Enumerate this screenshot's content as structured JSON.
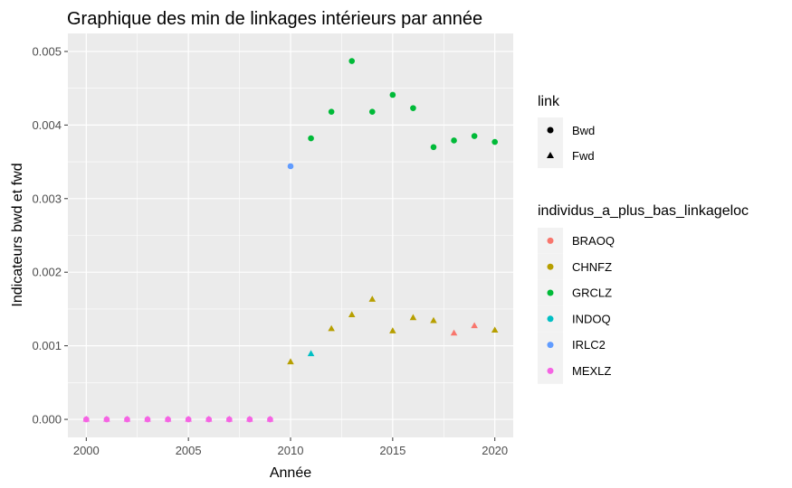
{
  "chart_data": {
    "type": "scatter",
    "title": "Graphique des min de linkages intérieurs par année",
    "xlabel": "Année",
    "ylabel": "Indicateurs bwd et fwd",
    "xlim": [
      1999.1,
      2020.9
    ],
    "ylim": [
      -0.000245,
      0.005245
    ],
    "x_ticks": [
      2000,
      2005,
      2010,
      2015,
      2020
    ],
    "x_tick_labels": [
      "2000",
      "2005",
      "2010",
      "2015",
      "2020"
    ],
    "y_ticks": [
      0,
      0.001,
      0.002,
      0.003,
      0.004,
      0.005
    ],
    "y_tick_labels": [
      "0.000",
      "0.001",
      "0.002",
      "0.003",
      "0.004",
      "0.005"
    ],
    "grid": true,
    "legend_position": "right",
    "shape_legend": {
      "title": "link",
      "entries": [
        {
          "label": "Bwd",
          "shape": "circle"
        },
        {
          "label": "Fwd",
          "shape": "triangle"
        }
      ]
    },
    "color_legend": {
      "title": "individus_a_plus_bas_linkageloc",
      "entries": [
        {
          "label": "BRAOQ",
          "color": "#F8766D"
        },
        {
          "label": "CHNFZ",
          "color": "#B79F00"
        },
        {
          "label": "GRCLZ",
          "color": "#00BA38"
        },
        {
          "label": "INDOQ",
          "color": "#00BFC4"
        },
        {
          "label": "IRLC2",
          "color": "#619CFF"
        },
        {
          "label": "MEXLZ",
          "color": "#F564E3"
        }
      ]
    },
    "series": [
      {
        "link": "Bwd",
        "points": [
          {
            "x": 2000,
            "y": 0,
            "group": "MEXLZ"
          },
          {
            "x": 2001,
            "y": 0,
            "group": "MEXLZ"
          },
          {
            "x": 2002,
            "y": 0,
            "group": "MEXLZ"
          },
          {
            "x": 2003,
            "y": 0,
            "group": "MEXLZ"
          },
          {
            "x": 2004,
            "y": 0,
            "group": "MEXLZ"
          },
          {
            "x": 2005,
            "y": 0,
            "group": "MEXLZ"
          },
          {
            "x": 2006,
            "y": 0,
            "group": "MEXLZ"
          },
          {
            "x": 2007,
            "y": 0,
            "group": "MEXLZ"
          },
          {
            "x": 2008,
            "y": 0,
            "group": "MEXLZ"
          },
          {
            "x": 2009,
            "y": 0,
            "group": "MEXLZ"
          },
          {
            "x": 2010,
            "y": 0.00344,
            "group": "IRLC2"
          },
          {
            "x": 2011,
            "y": 0.00382,
            "group": "GRCLZ"
          },
          {
            "x": 2012,
            "y": 0.00418,
            "group": "GRCLZ"
          },
          {
            "x": 2013,
            "y": 0.00487,
            "group": "GRCLZ"
          },
          {
            "x": 2014,
            "y": 0.00418,
            "group": "GRCLZ"
          },
          {
            "x": 2015,
            "y": 0.00441,
            "group": "GRCLZ"
          },
          {
            "x": 2016,
            "y": 0.00423,
            "group": "GRCLZ"
          },
          {
            "x": 2017,
            "y": 0.0037,
            "group": "GRCLZ"
          },
          {
            "x": 2018,
            "y": 0.00379,
            "group": "GRCLZ"
          },
          {
            "x": 2019,
            "y": 0.00385,
            "group": "GRCLZ"
          },
          {
            "x": 2020,
            "y": 0.00377,
            "group": "GRCLZ"
          }
        ]
      },
      {
        "link": "Fwd",
        "points": [
          {
            "x": 2000,
            "y": 0,
            "group": "MEXLZ"
          },
          {
            "x": 2001,
            "y": 0,
            "group": "MEXLZ"
          },
          {
            "x": 2002,
            "y": 0,
            "group": "MEXLZ"
          },
          {
            "x": 2003,
            "y": 0,
            "group": "MEXLZ"
          },
          {
            "x": 2004,
            "y": 0,
            "group": "MEXLZ"
          },
          {
            "x": 2005,
            "y": 0,
            "group": "MEXLZ"
          },
          {
            "x": 2006,
            "y": 0,
            "group": "MEXLZ"
          },
          {
            "x": 2007,
            "y": 0,
            "group": "MEXLZ"
          },
          {
            "x": 2008,
            "y": 0,
            "group": "MEXLZ"
          },
          {
            "x": 2009,
            "y": 0,
            "group": "MEXLZ"
          },
          {
            "x": 2010,
            "y": 0.00078,
            "group": "CHNFZ"
          },
          {
            "x": 2011,
            "y": 0.00089,
            "group": "INDOQ"
          },
          {
            "x": 2012,
            "y": 0.00123,
            "group": "CHNFZ"
          },
          {
            "x": 2013,
            "y": 0.00142,
            "group": "CHNFZ"
          },
          {
            "x": 2014,
            "y": 0.00163,
            "group": "CHNFZ"
          },
          {
            "x": 2015,
            "y": 0.0012,
            "group": "CHNFZ"
          },
          {
            "x": 2016,
            "y": 0.00138,
            "group": "CHNFZ"
          },
          {
            "x": 2017,
            "y": 0.00134,
            "group": "CHNFZ"
          },
          {
            "x": 2018,
            "y": 0.00117,
            "group": "BRAOQ"
          },
          {
            "x": 2019,
            "y": 0.00127,
            "group": "BRAOQ"
          },
          {
            "x": 2020,
            "y": 0.00121,
            "group": "CHNFZ"
          }
        ]
      }
    ]
  }
}
